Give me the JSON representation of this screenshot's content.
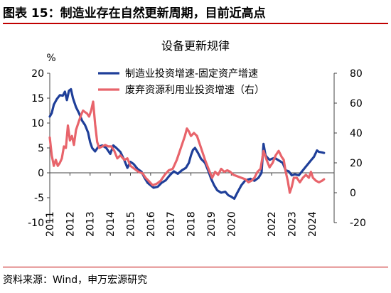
{
  "header": {
    "title": "图表 15：制造业存在自然更新周期，目前近高点"
  },
  "footer": {
    "source": "资料来源：Wind，申万宏源研究"
  },
  "colors": {
    "series1": "#1f3f99",
    "series2": "#e8646b",
    "accent": "#c00000",
    "axis": "#444444"
  },
  "chart_data": {
    "type": "line",
    "title": "设备更新规律",
    "y_unit_label": "%",
    "grid": false,
    "legend_position": "top-center",
    "x_range": [
      2011.0,
      2025.1
    ],
    "x_ticks": [
      {
        "value": 2011,
        "label": "2011"
      },
      {
        "value": 2012,
        "label": "2012"
      },
      {
        "value": 2013,
        "label": "2013"
      },
      {
        "value": 2014,
        "label": "2014"
      },
      {
        "value": 2015,
        "label": "2015"
      },
      {
        "value": 2016,
        "label": "2016"
      },
      {
        "value": 2017,
        "label": "2017"
      },
      {
        "value": 2018,
        "label": "2018"
      },
      {
        "value": 2019,
        "label": "2019"
      },
      {
        "value": 2020,
        "label": "2020"
      },
      {
        "value": 2022,
        "label": "2022"
      },
      {
        "value": 2023,
        "label": "2023"
      },
      {
        "value": 2024,
        "label": "2024"
      }
    ],
    "y_left": {
      "range": [
        -10,
        20
      ],
      "ticks": [
        "-10",
        "-5",
        "0",
        "5",
        "10",
        "15",
        "20"
      ]
    },
    "y_right": {
      "range": [
        -20,
        80
      ],
      "ticks": [
        "-20",
        "0",
        "20",
        "40",
        "60",
        "80"
      ]
    },
    "series": [
      {
        "name": "制造业投资增速-固定资产增速",
        "axis": "left",
        "color": "#1f3f99",
        "points": [
          [
            2011.0,
            11.3
          ],
          [
            2011.1,
            12.0
          ],
          [
            2011.2,
            13.7
          ],
          [
            2011.35,
            14.8
          ],
          [
            2011.5,
            15.6
          ],
          [
            2011.65,
            15.5
          ],
          [
            2011.75,
            16.3
          ],
          [
            2011.85,
            14.6
          ],
          [
            2011.95,
            16.5
          ],
          [
            2012.05,
            16.8
          ],
          [
            2012.15,
            15.0
          ],
          [
            2012.3,
            13.2
          ],
          [
            2012.45,
            12.0
          ],
          [
            2012.6,
            10.5
          ],
          [
            2012.75,
            9.6
          ],
          [
            2012.9,
            8.1
          ],
          [
            2013.0,
            6.2
          ],
          [
            2013.1,
            5.0
          ],
          [
            2013.25,
            4.3
          ],
          [
            2013.4,
            5.2
          ],
          [
            2013.6,
            5.5
          ],
          [
            2013.8,
            5.0
          ],
          [
            2014.0,
            3.8
          ],
          [
            2014.15,
            5.5
          ],
          [
            2014.3,
            5.0
          ],
          [
            2014.5,
            4.2
          ],
          [
            2014.7,
            2.5
          ],
          [
            2014.85,
            1.0
          ],
          [
            2015.0,
            2.2
          ],
          [
            2015.15,
            1.8
          ],
          [
            2015.35,
            0.8
          ],
          [
            2015.55,
            0.2
          ],
          [
            2015.7,
            -1.0
          ],
          [
            2015.85,
            -2.0
          ],
          [
            2016.0,
            -2.5
          ],
          [
            2016.15,
            -3.0
          ],
          [
            2016.35,
            -2.8
          ],
          [
            2016.55,
            -2.0
          ],
          [
            2016.75,
            -1.5
          ],
          [
            2016.95,
            -0.5
          ],
          [
            2017.15,
            0.3
          ],
          [
            2017.35,
            -0.2
          ],
          [
            2017.55,
            0.5
          ],
          [
            2017.75,
            1.0
          ],
          [
            2017.9,
            2.0
          ],
          [
            2018.0,
            3.5
          ],
          [
            2018.1,
            4.6
          ],
          [
            2018.2,
            5.0
          ],
          [
            2018.35,
            4.0
          ],
          [
            2018.5,
            2.8
          ],
          [
            2018.7,
            2.0
          ],
          [
            2018.85,
            0.5
          ],
          [
            2019.0,
            -1.2
          ],
          [
            2019.15,
            -2.5
          ],
          [
            2019.3,
            -3.5
          ],
          [
            2019.5,
            -4.0
          ],
          [
            2019.7,
            -3.8
          ],
          [
            2019.85,
            -4.5
          ],
          [
            2020.0,
            -4.8
          ],
          [
            2020.15,
            -5.2
          ],
          [
            2020.3,
            -4.0
          ],
          [
            2020.5,
            -2.5
          ],
          [
            2020.7,
            -1.5
          ],
          [
            2020.95,
            -1.2
          ],
          [
            2021.15,
            -1.6
          ],
          [
            2021.35,
            -1.0
          ],
          [
            2021.5,
            0.0
          ],
          [
            2021.6,
            5.8
          ],
          [
            2021.7,
            3.5
          ],
          [
            2021.8,
            3.0
          ],
          [
            2021.9,
            2.6
          ],
          [
            2022.0,
            2.8
          ],
          [
            2022.15,
            3.0
          ],
          [
            2022.35,
            2.5
          ],
          [
            2022.55,
            2.0
          ],
          [
            2022.7,
            0.5
          ],
          [
            2022.85,
            0.3
          ],
          [
            2023.0,
            -0.5
          ],
          [
            2023.15,
            -0.3
          ],
          [
            2023.35,
            -0.5
          ],
          [
            2023.55,
            0.5
          ],
          [
            2023.75,
            1.5
          ],
          [
            2023.95,
            2.5
          ],
          [
            2024.1,
            3.2
          ],
          [
            2024.25,
            4.5
          ],
          [
            2024.35,
            4.2
          ],
          [
            2024.5,
            4.1
          ],
          [
            2024.6,
            4.0
          ]
        ]
      },
      {
        "name": "废弃资源利用业投资增速（右）",
        "axis": "right",
        "color": "#e8646b",
        "points": [
          [
            2011.0,
            37
          ],
          [
            2011.1,
            25
          ],
          [
            2011.2,
            18
          ],
          [
            2011.3,
            22
          ],
          [
            2011.4,
            18
          ],
          [
            2011.5,
            20
          ],
          [
            2011.6,
            23
          ],
          [
            2011.7,
            31
          ],
          [
            2011.8,
            30
          ],
          [
            2011.9,
            45
          ],
          [
            2012.0,
            35
          ],
          [
            2012.1,
            38
          ],
          [
            2012.2,
            32
          ],
          [
            2012.3,
            42
          ],
          [
            2012.45,
            48
          ],
          [
            2012.55,
            52
          ],
          [
            2012.65,
            55
          ],
          [
            2012.75,
            54
          ],
          [
            2012.85,
            53
          ],
          [
            2012.95,
            51
          ],
          [
            2013.05,
            55
          ],
          [
            2013.15,
            61
          ],
          [
            2013.25,
            46
          ],
          [
            2013.35,
            34
          ],
          [
            2013.45,
            30
          ],
          [
            2013.6,
            31
          ],
          [
            2013.75,
            32
          ],
          [
            2013.9,
            31
          ],
          [
            2014.05,
            31
          ],
          [
            2014.2,
            28
          ],
          [
            2014.35,
            23
          ],
          [
            2014.5,
            25
          ],
          [
            2014.7,
            22
          ],
          [
            2014.85,
            23
          ],
          [
            2015.0,
            18
          ],
          [
            2015.2,
            16
          ],
          [
            2015.4,
            14
          ],
          [
            2015.6,
            13
          ],
          [
            2015.75,
            10
          ],
          [
            2015.9,
            8
          ],
          [
            2016.1,
            5
          ],
          [
            2016.3,
            6
          ],
          [
            2016.5,
            8
          ],
          [
            2016.7,
            12
          ],
          [
            2016.9,
            15
          ],
          [
            2017.1,
            16
          ],
          [
            2017.3,
            22
          ],
          [
            2017.5,
            30
          ],
          [
            2017.7,
            38
          ],
          [
            2017.8,
            43
          ],
          [
            2017.9,
            41
          ],
          [
            2018.0,
            38
          ],
          [
            2018.15,
            40
          ],
          [
            2018.3,
            38
          ],
          [
            2018.5,
            30
          ],
          [
            2018.7,
            22
          ],
          [
            2018.9,
            15
          ],
          [
            2019.05,
            10
          ],
          [
            2019.2,
            14
          ],
          [
            2019.35,
            12
          ],
          [
            2019.5,
            16
          ],
          [
            2019.65,
            14
          ],
          [
            2019.8,
            15
          ],
          [
            2019.95,
            14
          ],
          [
            2020.1,
            12
          ],
          [
            2020.3,
            11
          ],
          [
            2020.5,
            10
          ],
          [
            2020.7,
            9
          ],
          [
            2020.85,
            7
          ],
          [
            2021.0,
            8
          ],
          [
            2021.15,
            10
          ],
          [
            2021.3,
            14
          ],
          [
            2021.45,
            16
          ],
          [
            2021.6,
            28
          ],
          [
            2021.75,
            22
          ],
          [
            2021.9,
            17
          ],
          [
            2022.05,
            20
          ],
          [
            2022.2,
            25
          ],
          [
            2022.35,
            28
          ],
          [
            2022.5,
            24
          ],
          [
            2022.6,
            22
          ],
          [
            2022.7,
            14
          ],
          [
            2022.8,
            8
          ],
          [
            2022.9,
            0
          ],
          [
            2023.0,
            4
          ],
          [
            2023.1,
            10
          ],
          [
            2023.25,
            10
          ],
          [
            2023.4,
            7
          ],
          [
            2023.55,
            10
          ],
          [
            2023.7,
            12
          ],
          [
            2023.85,
            10
          ],
          [
            2023.95,
            14
          ],
          [
            2024.05,
            10
          ],
          [
            2024.2,
            8
          ],
          [
            2024.35,
            7
          ],
          [
            2024.5,
            8
          ],
          [
            2024.6,
            9
          ]
        ]
      }
    ]
  }
}
